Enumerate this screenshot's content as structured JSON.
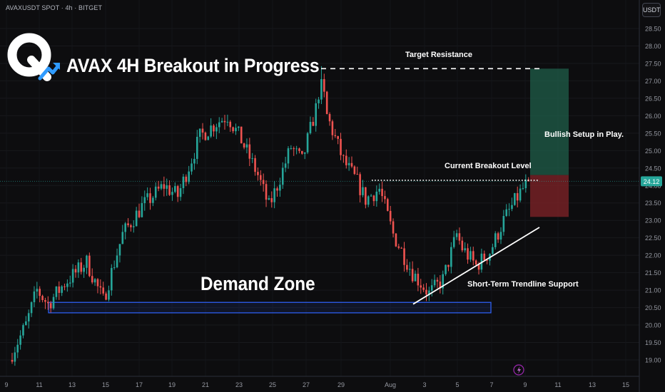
{
  "header": {
    "symbol_info": "AVAXUSDT SPOT · 4h · BITGET",
    "currency": "USDT"
  },
  "headline": "AVAX 4H Breakout in Progress",
  "annotations": {
    "target_resistance": "Target Resistance",
    "bullish_setup": "Bullish Setup in Play.",
    "current_breakout": "Current Breakout Level",
    "trendline_support": "Short-Term Trendline Support",
    "demand_zone": "Demand Zone"
  },
  "colors": {
    "background": "#0d0d0f",
    "bull": "#26a69a",
    "bear": "#ef5350",
    "price_tag": "#26a69a",
    "demand_zone_border": "#2f63ff",
    "target_zone": "#1f5e4a",
    "stop_zone": "#7a2226"
  },
  "chart_data": {
    "type": "candlestick",
    "price_axis_labels": [
      "28.50",
      "28.00",
      "27.50",
      "27.00",
      "26.50",
      "26.00",
      "25.50",
      "25.00",
      "24.50",
      "24.00",
      "23.50",
      "23.00",
      "22.50",
      "22.00",
      "21.50",
      "21.00",
      "20.50",
      "20.00",
      "19.50",
      "19.00"
    ],
    "price_axis_values": [
      28.5,
      28.0,
      27.5,
      27.0,
      26.5,
      26.0,
      25.5,
      25.0,
      24.5,
      24.0,
      23.5,
      23.0,
      22.5,
      22.0,
      21.5,
      21.0,
      20.5,
      20.0,
      19.5,
      19.0
    ],
    "current_price": "24.12",
    "time_axis_labels": [
      "9",
      "11",
      "13",
      "15",
      "17",
      "19",
      "21",
      "23",
      "25",
      "27",
      "29",
      "Aug",
      "3",
      "5",
      "7",
      "9",
      "11",
      "13",
      "15"
    ],
    "anchors": [
      {
        "i": 0,
        "p": 19.2
      },
      {
        "i": 5,
        "p": 20.0
      },
      {
        "i": 9,
        "p": 21.0
      },
      {
        "i": 13,
        "p": 20.6
      },
      {
        "i": 19,
        "p": 21.2
      },
      {
        "i": 27,
        "p": 21.8
      },
      {
        "i": 33,
        "p": 20.7
      },
      {
        "i": 40,
        "p": 22.6
      },
      {
        "i": 47,
        "p": 23.4
      },
      {
        "i": 55,
        "p": 24.0
      },
      {
        "i": 60,
        "p": 23.7
      },
      {
        "i": 68,
        "p": 25.4
      },
      {
        "i": 74,
        "p": 25.8
      },
      {
        "i": 78,
        "p": 26.0
      },
      {
        "i": 83,
        "p": 25.3
      },
      {
        "i": 89,
        "p": 24.3
      },
      {
        "i": 93,
        "p": 23.4
      },
      {
        "i": 96,
        "p": 24.0
      },
      {
        "i": 101,
        "p": 25.1
      },
      {
        "i": 105,
        "p": 24.7
      },
      {
        "i": 110,
        "p": 26.2
      },
      {
        "i": 112,
        "p": 27.1
      },
      {
        "i": 114,
        "p": 26.0
      },
      {
        "i": 120,
        "p": 24.7
      },
      {
        "i": 125,
        "p": 24.1
      },
      {
        "i": 128,
        "p": 23.6
      },
      {
        "i": 133,
        "p": 23.9
      },
      {
        "i": 138,
        "p": 22.6
      },
      {
        "i": 145,
        "p": 21.5
      },
      {
        "i": 151,
        "p": 20.9
      },
      {
        "i": 156,
        "p": 21.3
      },
      {
        "i": 161,
        "p": 22.6
      },
      {
        "i": 163,
        "p": 22.2
      },
      {
        "i": 168,
        "p": 21.7
      },
      {
        "i": 173,
        "p": 22.1
      },
      {
        "i": 178,
        "p": 23.0
      },
      {
        "i": 184,
        "p": 23.8
      },
      {
        "i": 187,
        "p": 24.12
      }
    ],
    "levels": {
      "target_resistance": 27.35,
      "current_breakout": 24.15,
      "demand_zone": [
        20.35,
        20.65
      ],
      "trendline": [
        {
          "date": "Aug 2",
          "price": 20.6
        },
        {
          "date": "Aug 10",
          "price": 22.8
        }
      ],
      "long_position": {
        "target": 27.35,
        "entry": 24.3,
        "stop": 23.1
      }
    }
  }
}
